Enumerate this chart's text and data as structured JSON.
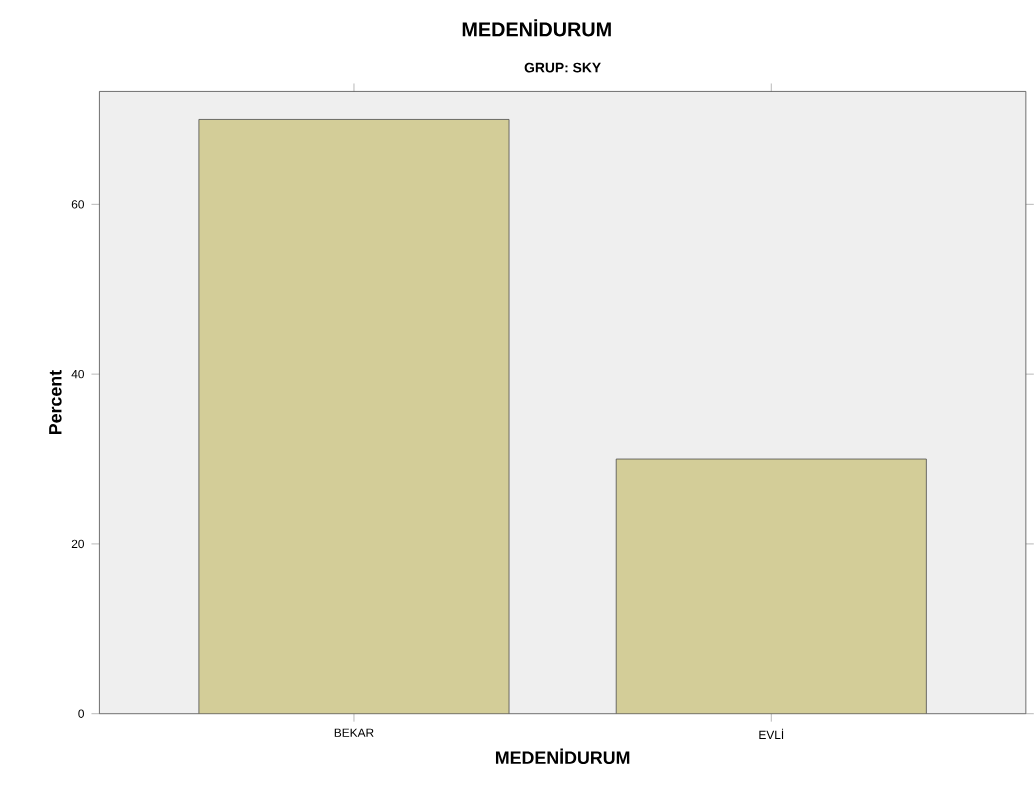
{
  "chart_data": {
    "type": "bar",
    "title": "MEDENİDURUM",
    "subtitle": "GRUP: SKY",
    "xlabel": "MEDENİDURUM",
    "ylabel": "Percent",
    "categories": [
      "BEKAR",
      "EVLİ"
    ],
    "values": [
      70,
      30
    ],
    "color": "#d3cd98",
    "ylim": [
      0,
      73.3
    ],
    "yticks": [
      0,
      20,
      40,
      60
    ]
  }
}
